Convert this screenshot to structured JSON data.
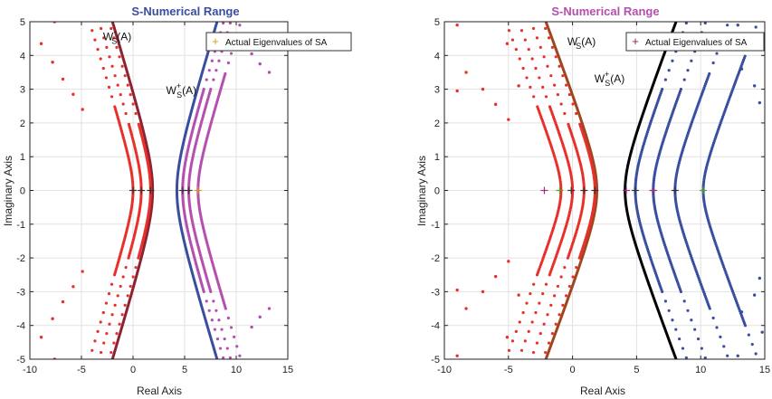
{
  "chart_data": [
    {
      "type": "scatter",
      "title": "S-Numerical Range",
      "title_color": "#3a4ea0",
      "xlabel": "Real Axis",
      "ylabel": "Imaginary Axis",
      "xlim": [
        -10,
        15
      ],
      "ylim": [
        -5,
        5
      ],
      "xticks": [
        -10,
        -5,
        0,
        5,
        10,
        15
      ],
      "yticks": [
        -5,
        -4,
        -3,
        -2,
        -1,
        0,
        1,
        2,
        3,
        4,
        5
      ],
      "xtick_labels": [
        "-10",
        "-5",
        "0",
        "5",
        "10",
        "15"
      ],
      "ytick_labels": [
        "-5",
        "-4",
        "-3",
        "-2",
        "-1",
        "0",
        "1",
        "2",
        "3",
        "4",
        "5"
      ],
      "grid": true,
      "legend": {
        "position": "top-right",
        "label": "Actual Eigenvalues of SA",
        "marker_color": "#d4a017"
      },
      "annotations": [
        {
          "text": "W",
          "sup": "-",
          "sub": "S",
          "suffix": "(A)",
          "x": -2.9,
          "y": 4.45
        },
        {
          "text": "W",
          "sup": "+",
          "sub": "S",
          "suffix": "(A)",
          "x": 3.2,
          "y": 2.85
        }
      ],
      "series": [
        {
          "kind": "hyperbola_line",
          "side": "left",
          "vertex": 1.9,
          "b": 1.26,
          "color": "#8b2332",
          "width": 3
        },
        {
          "kind": "hyperbola_line",
          "side": "right",
          "vertex": 4.25,
          "b": 1.26,
          "color": "#3a4ea0",
          "width": 3
        },
        {
          "kind": "hyperbola_dots",
          "side": "left",
          "vertex": 1.7,
          "b": 1.1,
          "color": "#e8302a",
          "dense_to": 2
        },
        {
          "kind": "hyperbola_dots",
          "side": "left",
          "vertex": 0.8,
          "b": 1.0,
          "color": "#e8302a",
          "dense_to": 2
        },
        {
          "kind": "hyperbola_dots",
          "side": "left",
          "vertex": 0.0,
          "b": 0.85,
          "color": "#e8302a",
          "dense_to": 2.5
        },
        {
          "kind": "hyperbola_dots",
          "side": "right",
          "vertex": 4.8,
          "b": 1.15,
          "color": "#b44fae",
          "dense_to": 3
        },
        {
          "kind": "hyperbola_dots",
          "side": "right",
          "vertex": 5.4,
          "b": 1.05,
          "color": "#b44fae",
          "dense_to": 3
        },
        {
          "kind": "hyperbola_dots",
          "side": "right",
          "vertex": 6.3,
          "b": 0.95,
          "color": "#b44fae",
          "dense_to": 3.5
        },
        {
          "kind": "points",
          "color": "#e8302a",
          "points": [
            [
              -8.9,
              4.35
            ],
            [
              -7.8,
              3.8
            ],
            [
              -6.8,
              3.3
            ],
            [
              -5.8,
              2.85
            ],
            [
              -4.9,
              2.4
            ],
            [
              -8.9,
              -4.35
            ],
            [
              -7.8,
              -3.8
            ],
            [
              -6.8,
              -3.3
            ],
            [
              -5.8,
              -2.85
            ],
            [
              -4.9,
              -2.4
            ],
            [
              -7.6,
              5.0
            ],
            [
              -7.6,
              -5.0
            ]
          ]
        },
        {
          "kind": "points",
          "color": "#b44fae",
          "points": [
            [
              11.5,
              4.05
            ],
            [
              12.3,
              3.75
            ],
            [
              13.2,
              3.5
            ],
            [
              11.5,
              -4.05
            ],
            [
              12.3,
              -3.75
            ],
            [
              13.2,
              -3.5
            ]
          ]
        },
        {
          "kind": "eigen",
          "color": "#333333",
          "points": [
            [
              0.0,
              0
            ],
            [
              0.8,
              0
            ],
            [
              1.7,
              0
            ],
            [
              4.8,
              0
            ],
            [
              5.4,
              0
            ]
          ]
        },
        {
          "kind": "eigen",
          "color": "#d4a017",
          "points": [
            [
              6.3,
              0
            ]
          ]
        }
      ]
    },
    {
      "type": "scatter",
      "title": "S-Numerical Range",
      "title_color": "#b44fae",
      "xlabel": "Real Axis",
      "ylabel": "Imaginary Axis",
      "xlim": [
        -10,
        15
      ],
      "ylim": [
        -5,
        5
      ],
      "xticks": [
        -10,
        -5,
        0,
        5,
        10,
        15
      ],
      "yticks": [
        -5,
        -4,
        -3,
        -2,
        -1,
        0,
        1,
        2,
        3,
        4,
        5
      ],
      "xtick_labels": [
        "-10",
        "-5",
        "0",
        "5",
        "10",
        "15"
      ],
      "ytick_labels": [
        "-5",
        "-4",
        "-3",
        "-2",
        "-1",
        "0",
        "1",
        "2",
        "3",
        "4",
        "5"
      ],
      "grid": true,
      "legend": {
        "position": "top-right",
        "label": "Actual Eigenvalues of SA",
        "marker_color": "#8b2332"
      },
      "annotations": [
        {
          "text": "W",
          "sup": "-",
          "sub": "S",
          "suffix": "(A)",
          "x": -0.4,
          "y": 4.3
        },
        {
          "text": "W",
          "sup": "+",
          "sub": "S",
          "suffix": "(A)",
          "x": 1.7,
          "y": 3.2
        }
      ],
      "series": [
        {
          "kind": "hyperbola_line",
          "side": "left",
          "vertex": 1.9,
          "b": 1.15,
          "color": "#a0451e",
          "width": 3
        },
        {
          "kind": "hyperbola_line",
          "side": "right",
          "vertex": 4.1,
          "b": 1.15,
          "color": "#000000",
          "width": 3
        },
        {
          "kind": "hyperbola_dots",
          "side": "left",
          "vertex": 1.75,
          "b": 1.05,
          "color": "#e8302a",
          "dense_to": 2
        },
        {
          "kind": "hyperbola_dots",
          "side": "left",
          "vertex": 0.9,
          "b": 0.95,
          "color": "#e8302a",
          "dense_to": 2
        },
        {
          "kind": "hyperbola_dots",
          "side": "left",
          "vertex": 0.0,
          "b": 0.85,
          "color": "#e8302a",
          "dense_to": 2.5
        },
        {
          "kind": "hyperbola_dots",
          "side": "left",
          "vertex": -0.9,
          "b": 0.75,
          "color": "#e8302a",
          "dense_to": 2.5
        },
        {
          "kind": "hyperbola_dots",
          "side": "right",
          "vertex": 4.9,
          "b": 1.1,
          "color": "#3a4ea0",
          "dense_to": 3
        },
        {
          "kind": "hyperbola_dots",
          "side": "right",
          "vertex": 6.3,
          "b": 1.0,
          "color": "#3a4ea0",
          "dense_to": 3
        },
        {
          "kind": "hyperbola_dots",
          "side": "right",
          "vertex": 8.0,
          "b": 0.9,
          "color": "#3a4ea0",
          "dense_to": 3.5
        },
        {
          "kind": "hyperbola_dots",
          "side": "right",
          "vertex": 10.2,
          "b": 0.8,
          "color": "#3a4ea0",
          "dense_to": 4
        },
        {
          "kind": "points",
          "color": "#e8302a",
          "points": [
            [
              -9.0,
              4.9
            ],
            [
              -8.3,
              3.5
            ],
            [
              -7.0,
              3.0
            ],
            [
              -6.0,
              2.55
            ],
            [
              -5.0,
              2.1
            ],
            [
              -9.0,
              2.95
            ],
            [
              -9.0,
              -4.9
            ],
            [
              -8.3,
              -3.5
            ],
            [
              -7.0,
              -3.0
            ],
            [
              -6.0,
              -2.55
            ],
            [
              -5.0,
              -2.1
            ],
            [
              -9.0,
              -2.95
            ],
            [
              -5.1,
              4.35
            ],
            [
              -5.1,
              -4.35
            ],
            [
              -4.2,
              3.1
            ],
            [
              -4.2,
              -3.1
            ]
          ]
        },
        {
          "kind": "points",
          "color": "#3a4ea0",
          "points": [
            [
              12.9,
              4.9
            ],
            [
              13.2,
              3.6
            ],
            [
              14.2,
              3.1
            ],
            [
              14.6,
              2.6
            ],
            [
              12.9,
              -4.9
            ],
            [
              13.2,
              -3.6
            ],
            [
              14.2,
              -3.1
            ],
            [
              14.6,
              -2.6
            ],
            [
              14.8,
              4.2
            ],
            [
              14.8,
              -4.2
            ]
          ]
        },
        {
          "kind": "eigen",
          "color": "#333333",
          "points": [
            [
              -0.1,
              0
            ],
            [
              0.9,
              0
            ],
            [
              1.75,
              0
            ],
            [
              4.9,
              0
            ],
            [
              6.3,
              0
            ],
            [
              8.0,
              0
            ]
          ]
        },
        {
          "kind": "eigen",
          "color": "#a0307a",
          "points": [
            [
              -2.2,
              0
            ],
            [
              4.2,
              0
            ],
            [
              6.3,
              0
            ]
          ]
        },
        {
          "kind": "eigen",
          "color": "#5aa02c",
          "points": [
            [
              -1.0,
              0
            ],
            [
              10.2,
              0
            ]
          ]
        }
      ]
    }
  ]
}
